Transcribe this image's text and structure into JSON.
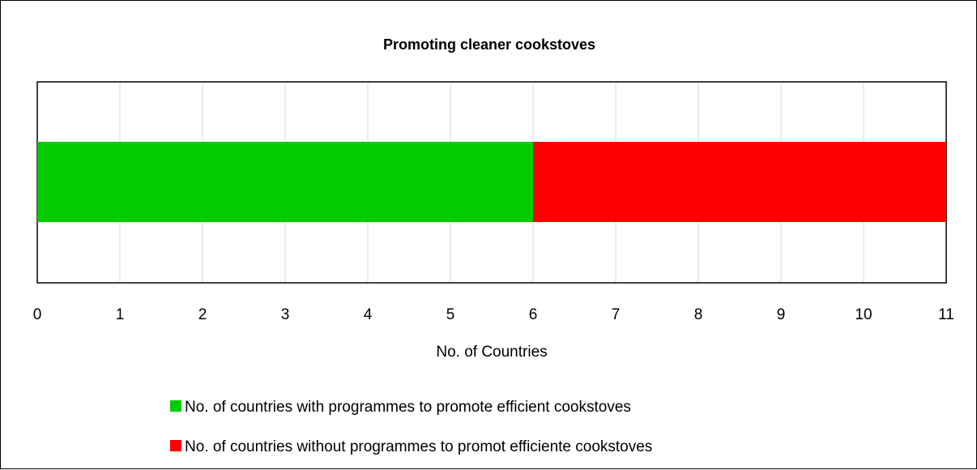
{
  "chart_data": {
    "type": "bar",
    "orientation": "horizontal",
    "stacked": true,
    "title": "Promoting cleaner cookstoves",
    "xlabel": "No. of Countries",
    "ylabel": "",
    "xlim": [
      0,
      11
    ],
    "x_ticks": [
      "0",
      "1",
      "2",
      "3",
      "4",
      "5",
      "6",
      "7",
      "8",
      "9",
      "10",
      "11"
    ],
    "grid": true,
    "legend_position": "bottom",
    "series": [
      {
        "name": "No. of countries with programmes to promote efficient cookstoves",
        "values": [
          6
        ],
        "color": "#00CC00"
      },
      {
        "name": "No. of countries without programmes to promot efficiente cookstoves",
        "values": [
          5
        ],
        "color": "#FF0000"
      }
    ]
  }
}
